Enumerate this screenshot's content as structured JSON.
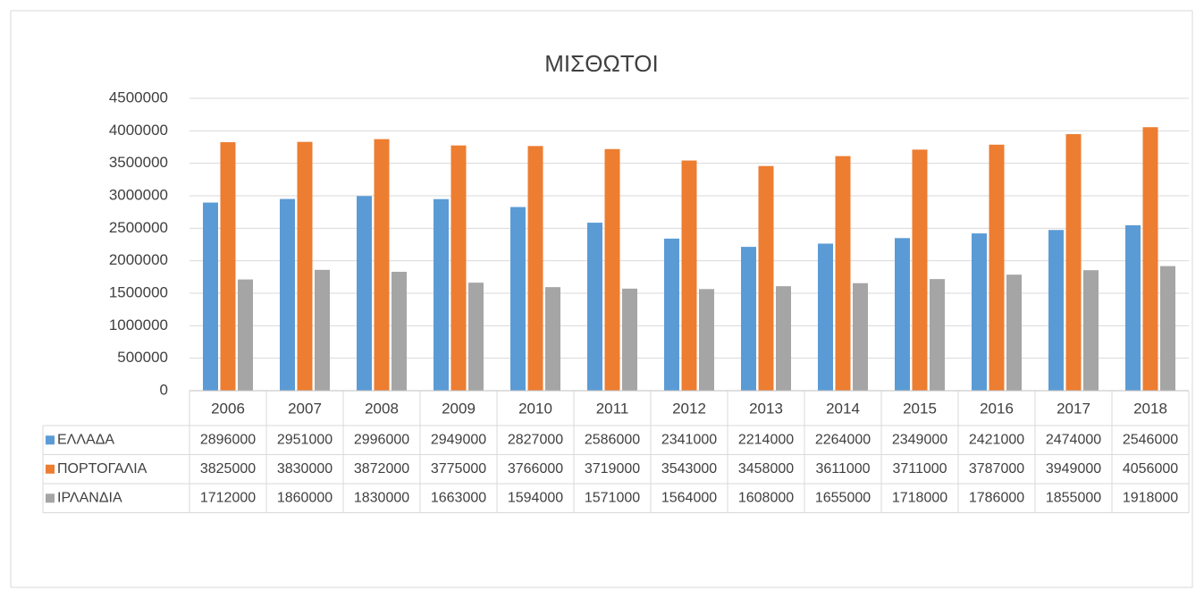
{
  "chart_data": {
    "type": "bar",
    "title": "ΜΙΣΘΩΤΟΙ",
    "categories": [
      "2006",
      "2007",
      "2008",
      "2009",
      "2010",
      "2011",
      "2012",
      "2013",
      "2014",
      "2015",
      "2016",
      "2017",
      "2018"
    ],
    "series": [
      {
        "name": "ΕΛΛΑΔΑ",
        "color": "#5b9bd5",
        "values": [
          2896000,
          2951000,
          2996000,
          2949000,
          2827000,
          2586000,
          2341000,
          2214000,
          2264000,
          2349000,
          2421000,
          2474000,
          2546000
        ]
      },
      {
        "name": "ΠΟΡΤΟΓΑΛΙΑ",
        "color": "#ed7d31",
        "values": [
          3825000,
          3830000,
          3872000,
          3775000,
          3766000,
          3719000,
          3543000,
          3458000,
          3611000,
          3711000,
          3787000,
          3949000,
          4056000
        ]
      },
      {
        "name": "ΙΡΛΑΝΔΙΑ",
        "color": "#a5a5a5",
        "values": [
          1712000,
          1860000,
          1830000,
          1663000,
          1594000,
          1571000,
          1564000,
          1608000,
          1655000,
          1718000,
          1786000,
          1855000,
          1918000
        ]
      }
    ],
    "ylim": [
      0,
      4500000
    ],
    "yticks": [
      0,
      500000,
      1000000,
      1500000,
      2000000,
      2500000,
      3000000,
      3500000,
      4000000,
      4500000
    ],
    "grid": true
  }
}
